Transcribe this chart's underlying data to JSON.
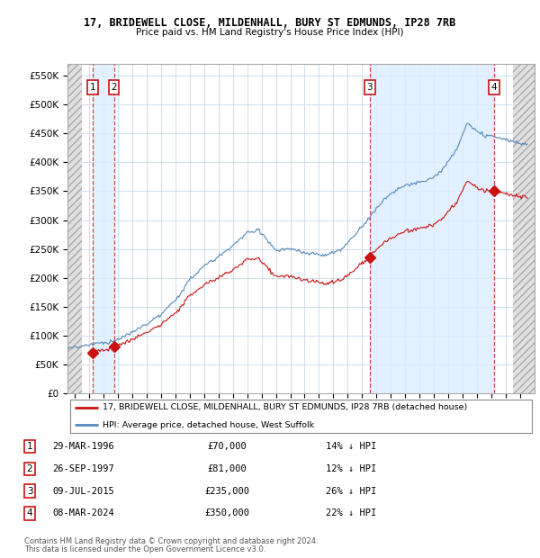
{
  "title1": "17, BRIDEWELL CLOSE, MILDENHALL, BURY ST EDMUNDS, IP28 7RB",
  "title2": "Price paid vs. HM Land Registry's House Price Index (HPI)",
  "ylabel_ticks": [
    "£0",
    "£50K",
    "£100K",
    "£150K",
    "£200K",
    "£250K",
    "£300K",
    "£350K",
    "£400K",
    "£450K",
    "£500K",
    "£550K"
  ],
  "ylabel_values": [
    0,
    50000,
    100000,
    150000,
    200000,
    250000,
    300000,
    350000,
    400000,
    450000,
    500000,
    550000
  ],
  "xlim_start": 1994.5,
  "xlim_end": 2027.0,
  "ylim_min": 0,
  "ylim_max": 570000,
  "hatch_left_end": 1995.5,
  "hatch_right_start": 2025.5,
  "purchases": [
    {
      "label": "1",
      "date": 1996.24,
      "price": 70000,
      "date_str": "29-MAR-1996",
      "price_str": "£70,000",
      "pct": "14% ↓ HPI"
    },
    {
      "label": "2",
      "date": 1997.73,
      "price": 81000,
      "date_str": "26-SEP-1997",
      "price_str": "£81,000",
      "pct": "12% ↓ HPI"
    },
    {
      "label": "3",
      "date": 2015.52,
      "price": 235000,
      "date_str": "09-JUL-2015",
      "price_str": "£235,000",
      "pct": "26% ↓ HPI"
    },
    {
      "label": "4",
      "date": 2024.18,
      "price": 350000,
      "date_str": "08-MAR-2024",
      "price_str": "£350,000",
      "pct": "22% ↓ HPI"
    }
  ],
  "hpi_line_color": "#5588bb",
  "price_line_color": "#cc1111",
  "marker_color": "#cc1111",
  "vline_color": "#cc3333",
  "grid_color": "#c8d8e8",
  "shade_band_color": "#ddeeff",
  "legend_line1": "17, BRIDEWELL CLOSE, MILDENHALL, BURY ST EDMUNDS, IP28 7RB (detached house)",
  "legend_line2": "HPI: Average price, detached house, West Suffolk",
  "footer1": "Contains HM Land Registry data © Crown copyright and database right 2024.",
  "footer2": "This data is licensed under the Open Government Licence v3.0.",
  "table_rows": [
    [
      "1",
      "29-MAR-1996",
      "£70,000",
      "14% ↓ HPI"
    ],
    [
      "2",
      "26-SEP-1997",
      "£81,000",
      "12% ↓ HPI"
    ],
    [
      "3",
      "09-JUL-2015",
      "£235,000",
      "26% ↓ HPI"
    ],
    [
      "4",
      "08-MAR-2024",
      "£350,000",
      "22% ↓ HPI"
    ]
  ]
}
